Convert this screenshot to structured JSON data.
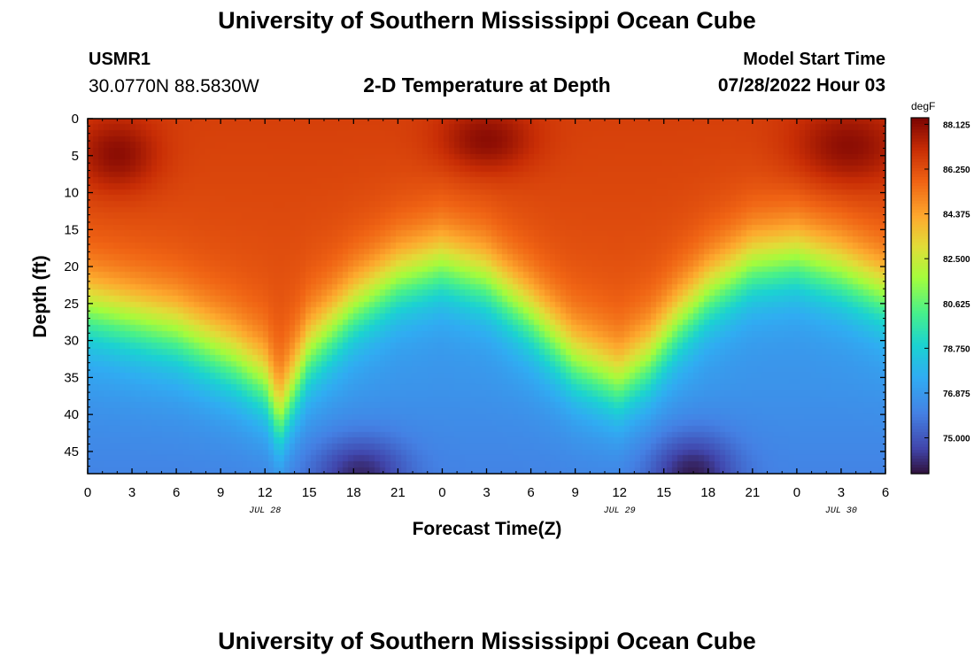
{
  "header": {
    "title": "University of Southern Mississippi Ocean Cube",
    "station": "USMR1",
    "coords": "30.0770N  88.5830W",
    "subtitle": "2-D Temperature at Depth",
    "model_label": "Model Start Time",
    "model_time": "07/28/2022 Hour 03"
  },
  "footer": {
    "title": "University of Southern Mississippi Ocean Cube"
  },
  "chart_data": {
    "type": "heatmap",
    "xlabel": "Forecast Time(Z)",
    "ylabel": "Depth (ft)",
    "x_range_hours": [
      0,
      54
    ],
    "x_tick_labels": [
      "0",
      "3",
      "6",
      "9",
      "12",
      "15",
      "18",
      "21",
      "0",
      "3",
      "6",
      "9",
      "12",
      "15",
      "18",
      "21",
      "0",
      "3",
      "6"
    ],
    "date_labels": [
      {
        "text": "JUL 28",
        "hour": 12
      },
      {
        "text": "JUL 29",
        "hour": 36
      },
      {
        "text": "JUL 30",
        "hour": 51
      }
    ],
    "y_range_ft": [
      0,
      48
    ],
    "y_tick_labels": [
      "0",
      "5",
      "10",
      "15",
      "20",
      "25",
      "30",
      "35",
      "40",
      "45"
    ],
    "colorbar": {
      "unit": "degF",
      "min": 73.5,
      "max": 88.4,
      "tick_labels": [
        "88.125",
        "86.250",
        "84.375",
        "82.500",
        "80.625",
        "78.750",
        "76.875",
        "75.000"
      ]
    },
    "field_description": {
      "surface_temp_degF": [
        86.5,
        88.1
      ],
      "bottom_temp_degF": [
        74.0,
        77.0
      ],
      "thermocline_depth_ft_by_hour": [
        [
          0,
          26
        ],
        [
          6,
          29
        ],
        [
          10,
          33
        ],
        [
          12,
          36
        ],
        [
          13,
          41
        ],
        [
          15,
          32
        ],
        [
          18,
          26
        ],
        [
          21,
          22
        ],
        [
          24,
          20
        ],
        [
          27,
          22
        ],
        [
          30,
          27
        ],
        [
          33,
          33
        ],
        [
          36,
          36
        ],
        [
          38,
          33
        ],
        [
          40,
          28
        ],
        [
          42,
          24
        ],
        [
          45,
          20
        ],
        [
          48,
          19
        ],
        [
          51,
          21
        ],
        [
          54,
          24
        ]
      ]
    }
  }
}
